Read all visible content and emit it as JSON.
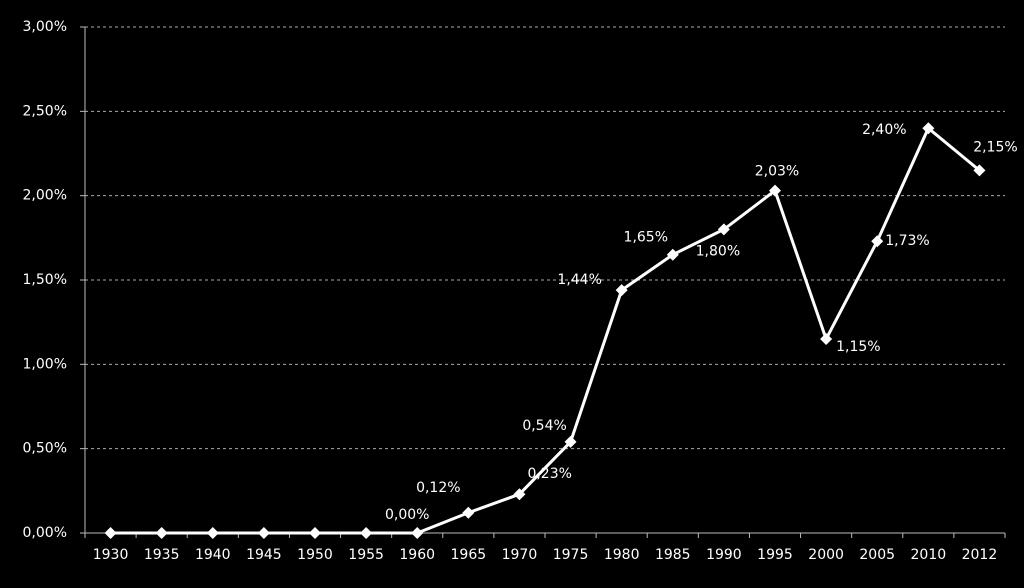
{
  "chart_data": {
    "type": "line",
    "categories": [
      "1930",
      "1935",
      "1940",
      "1945",
      "1950",
      "1955",
      "1960",
      "1965",
      "1970",
      "1975",
      "1980",
      "1985",
      "1990",
      "1995",
      "2000",
      "2005",
      "2010",
      "2012"
    ],
    "series": [
      {
        "color": "#ffffff",
        "values": [
          0,
          0,
          0,
          0,
          0,
          0,
          0,
          0.12,
          0.23,
          0.54,
          1.44,
          1.65,
          1.8,
          2.03,
          1.15,
          1.73,
          2.4,
          2.15
        ],
        "value_labels": [
          null,
          null,
          null,
          null,
          null,
          null,
          "0,00%",
          "0,12%",
          "0,23%",
          "0,54%",
          "1,44%",
          "1,65%",
          "1,80%",
          "2,03%",
          "1,15%",
          "1,73%",
          "2,40%",
          "2,15%"
        ]
      }
    ],
    "ylim": [
      0,
      3
    ],
    "yticks": [
      {
        "value": 0,
        "label": "0,00%"
      },
      {
        "value": 0.5,
        "label": "0,50%"
      },
      {
        "value": 1,
        "label": "1,00%"
      },
      {
        "value": 1.5,
        "label": "1,50%"
      },
      {
        "value": 2,
        "label": "2,00%"
      },
      {
        "value": 2.5,
        "label": "2,50%"
      },
      {
        "value": 3,
        "label": "3,00%"
      }
    ],
    "grid": true
  }
}
